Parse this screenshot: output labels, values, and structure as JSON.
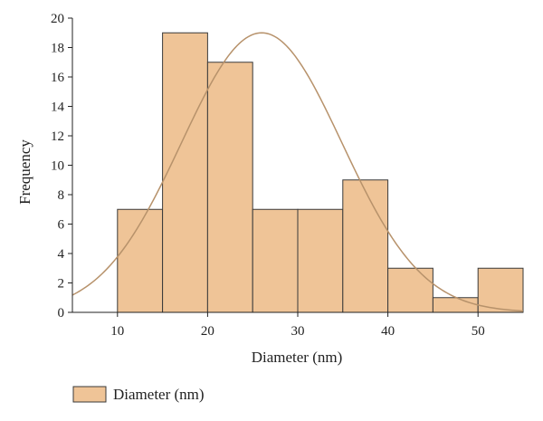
{
  "chart_data": {
    "type": "bar",
    "title": "",
    "xlabel": "Diameter (nm)",
    "ylabel": "Frequency",
    "xlim": [
      5,
      55
    ],
    "ylim": [
      0,
      20
    ],
    "x_ticks": [
      10,
      20,
      30,
      40,
      50
    ],
    "y_ticks": [
      0,
      2,
      4,
      6,
      8,
      10,
      12,
      14,
      16,
      18,
      20
    ],
    "bin_edges": [
      10,
      15,
      20,
      25,
      30,
      35,
      40,
      45,
      50,
      55
    ],
    "values": [
      7,
      19,
      17,
      7,
      7,
      9,
      3,
      1,
      3
    ],
    "series": [
      {
        "name": "Diameter (nm)",
        "type": "histogram",
        "values": [
          7,
          19,
          17,
          7,
          7,
          9,
          3,
          1,
          3
        ]
      }
    ],
    "fit_curve": {
      "type": "normal",
      "mean": 26,
      "peak": 19,
      "sigma": 8.9
    },
    "legend": {
      "placement": "bottom-left",
      "entries": [
        "Diameter (nm)"
      ]
    },
    "grid": false,
    "colors": {
      "bar_fill": "#efc497",
      "bar_stroke": "#3a3a3a",
      "curve": "#b7926b"
    }
  }
}
